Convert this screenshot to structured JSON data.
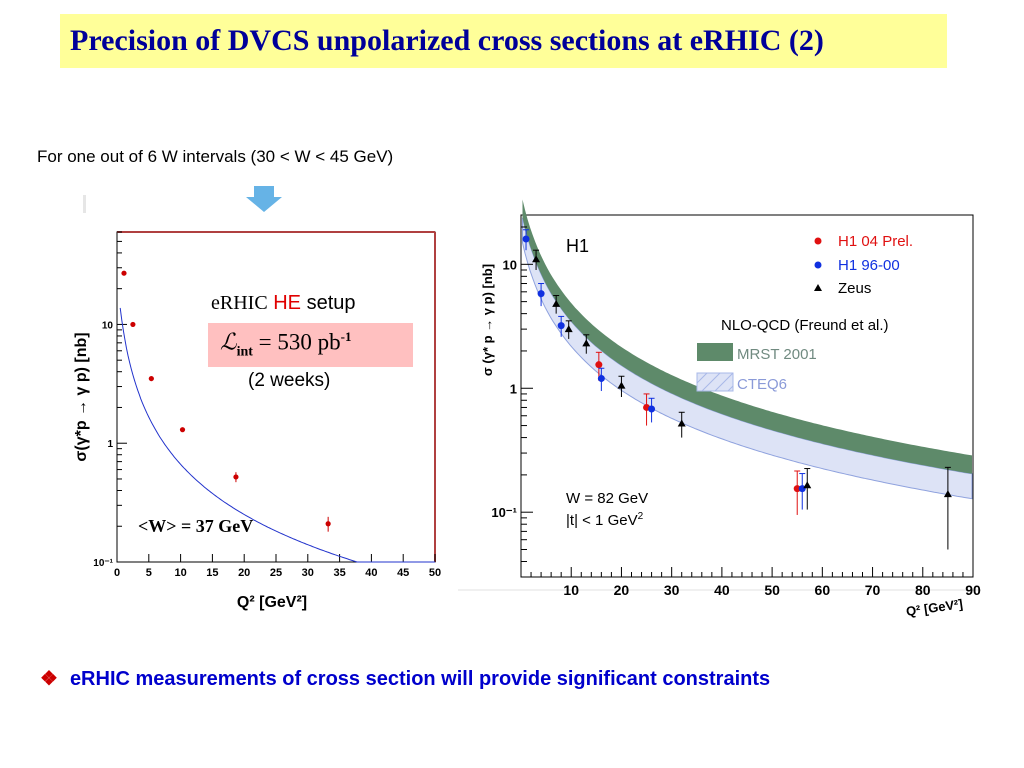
{
  "slide": {
    "title": "Precision of DVCS unpolarized cross sections at eRHIC (2)",
    "subtitle": "For one out of 6 W intervals  (30 < W < 45 GeV)",
    "bullet_symbol": "❖",
    "bullet_text": "eRHIC measurements of cross section will provide significant constraints",
    "colors": {
      "title_bg": "#ffff99",
      "title_text": "#000099",
      "bullet_text": "#0000cc",
      "arrow": "#66b3e6",
      "lumi_box": "#ffc0c0"
    }
  },
  "left_annotations": {
    "erhic_prefix": "eRHIC",
    "erhic_he": "HE",
    "erhic_suffix": "setup",
    "lumi_L": "ℒ",
    "lumi_sub": "int",
    "lumi_eq": "=  530 pb",
    "lumi_exp": "-1",
    "weeks": "(2 weeks)",
    "w_label": "<W> = 37 GeV"
  },
  "right_annotations": {
    "h1_label": "H1",
    "nlo_label": "NLO-QCD (Freund et al.)",
    "mrst_label": "MRST 2001",
    "cteq_label": "CTEQ6",
    "w_value": "W = 82 GeV",
    "t_value": "|t| < 1 GeV"
  },
  "chart_data": [
    {
      "type": "scatter",
      "ylabel": "σ(γ*p → γ p) [nb]",
      "xlabel": "Q² [GeV²]",
      "xlim": [
        0,
        50
      ],
      "ylim": [
        0.1,
        60
      ],
      "yscale": "log",
      "xticks": [
        0,
        5,
        10,
        15,
        20,
        25,
        30,
        35,
        40,
        45,
        50
      ],
      "yticks": [
        {
          "value": 10,
          "label": "10"
        },
        {
          "value": 1,
          "label": "1"
        },
        {
          "value": 0.1,
          "label": "10⁻¹"
        }
      ],
      "series": [
        {
          "x": [
            1.1,
            2.5,
            5.4,
            10.3,
            18.7,
            33.2
          ],
          "y": [
            27,
            10,
            3.5,
            1.3,
            0.52,
            0.21
          ],
          "err": [
            0.9,
            0.3,
            0.12,
            0.05,
            0.05,
            0.03
          ],
          "color": "#cc0000"
        }
      ],
      "fit_curve": {
        "color": "#2233cc"
      }
    },
    {
      "type": "scatter",
      "ylabel": "σ (γ* p → γ p) [nb]",
      "xlabel": "Q² [GeV²]",
      "xlim": [
        0,
        90
      ],
      "ylim": [
        0.03,
        25
      ],
      "yscale": "log",
      "xticks": [
        10,
        20,
        30,
        40,
        50,
        60,
        70,
        80,
        90
      ],
      "yticks": [
        {
          "value": 10,
          "label": "10"
        },
        {
          "value": 1,
          "label": "1"
        },
        {
          "value": 0.1,
          "label": "10⁻¹"
        }
      ],
      "series": [
        {
          "name": "H1 04 Prel.",
          "color": "#e01010",
          "marker": "circle",
          "x": [
            15.5,
            25,
            55
          ],
          "y": [
            1.55,
            0.7,
            0.155
          ],
          "err": [
            0.4,
            0.2,
            0.06
          ]
        },
        {
          "name": "H1 96-00",
          "color": "#1030e0",
          "marker": "circle",
          "x": [
            1,
            4,
            8,
            16,
            26,
            56
          ],
          "y": [
            16,
            5.8,
            3.2,
            1.2,
            0.68,
            0.155
          ],
          "err": [
            3,
            1.2,
            0.6,
            0.25,
            0.15,
            0.05
          ]
        },
        {
          "name": "Zeus",
          "color": "#000000",
          "marker": "triangle",
          "x": [
            3,
            7,
            9.5,
            13,
            20,
            32,
            57,
            85
          ],
          "y": [
            11,
            4.8,
            3,
            2.3,
            1.05,
            0.52,
            0.165,
            0.14
          ],
          "err": [
            2,
            0.8,
            0.5,
            0.4,
            0.2,
            0.12,
            0.06,
            0.09
          ]
        }
      ],
      "bands": [
        {
          "name": "MRST 2001",
          "color": "#5e8a6a"
        },
        {
          "name": "CTEQ6",
          "color": "#a8b8e8"
        }
      ]
    }
  ]
}
